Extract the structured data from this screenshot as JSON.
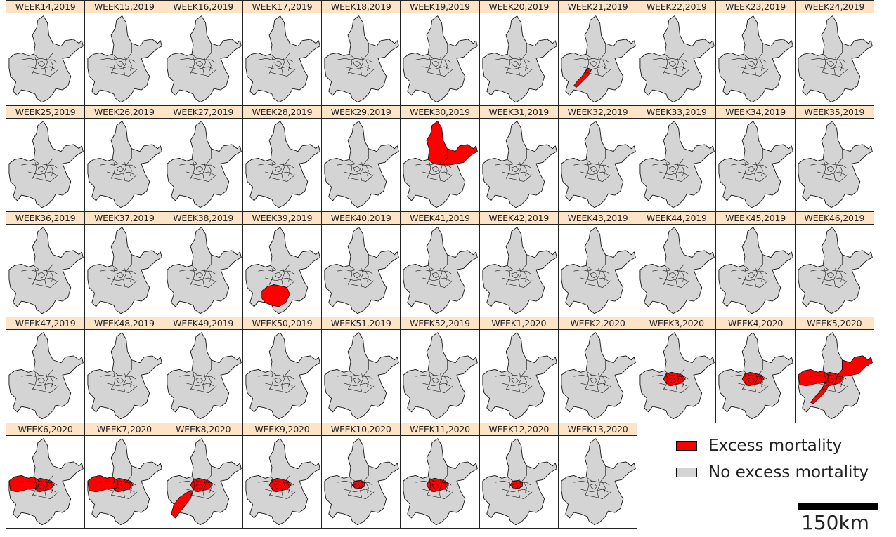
{
  "colors": {
    "excess": "#ff0000",
    "none": "#d4d4d4",
    "title_bg": "#fde4c6",
    "border": "#222222"
  },
  "panels": [
    {
      "label": "WEEK14,2019",
      "excess": []
    },
    {
      "label": "WEEK15,2019",
      "excess": []
    },
    {
      "label": "WEEK16,2019",
      "excess": []
    },
    {
      "label": "WEEK17,2019",
      "excess": []
    },
    {
      "label": "WEEK18,2019",
      "excess": []
    },
    {
      "label": "WEEK19,2019",
      "excess": []
    },
    {
      "label": "WEEK20,2019",
      "excess": []
    },
    {
      "label": "WEEK21,2019",
      "excess": [
        "sw-corridor"
      ]
    },
    {
      "label": "WEEK22,2019",
      "excess": []
    },
    {
      "label": "WEEK23,2019",
      "excess": []
    },
    {
      "label": "WEEK24,2019",
      "excess": []
    },
    {
      "label": "WEEK25,2019",
      "excess": []
    },
    {
      "label": "WEEK26,2019",
      "excess": []
    },
    {
      "label": "WEEK27,2019",
      "excess": []
    },
    {
      "label": "WEEK28,2019",
      "excess": []
    },
    {
      "label": "WEEK29,2019",
      "excess": []
    },
    {
      "label": "WEEK30,2019",
      "excess": [
        "north",
        "northeast"
      ]
    },
    {
      "label": "WEEK31,2019",
      "excess": []
    },
    {
      "label": "WEEK32,2019",
      "excess": []
    },
    {
      "label": "WEEK33,2019",
      "excess": []
    },
    {
      "label": "WEEK34,2019",
      "excess": []
    },
    {
      "label": "WEEK35,2019",
      "excess": []
    },
    {
      "label": "WEEK36,2019",
      "excess": []
    },
    {
      "label": "WEEK37,2019",
      "excess": []
    },
    {
      "label": "WEEK38,2019",
      "excess": []
    },
    {
      "label": "WEEK39,2019",
      "excess": [
        "south"
      ]
    },
    {
      "label": "WEEK40,2019",
      "excess": []
    },
    {
      "label": "WEEK41,2019",
      "excess": []
    },
    {
      "label": "WEEK42,2019",
      "excess": []
    },
    {
      "label": "WEEK43,2019",
      "excess": []
    },
    {
      "label": "WEEK44,2019",
      "excess": []
    },
    {
      "label": "WEEK45,2019",
      "excess": []
    },
    {
      "label": "WEEK46,2019",
      "excess": []
    },
    {
      "label": "WEEK47,2019",
      "excess": []
    },
    {
      "label": "WEEK48,2019",
      "excess": []
    },
    {
      "label": "WEEK49,2019",
      "excess": []
    },
    {
      "label": "WEEK50,2019",
      "excess": []
    },
    {
      "label": "WEEK51,2019",
      "excess": []
    },
    {
      "label": "WEEK52,2019",
      "excess": []
    },
    {
      "label": "WEEK1,2020",
      "excess": []
    },
    {
      "label": "WEEK2,2020",
      "excess": []
    },
    {
      "label": "WEEK3,2020",
      "excess": [
        "central"
      ]
    },
    {
      "label": "WEEK4,2020",
      "excess": [
        "central"
      ]
    },
    {
      "label": "WEEK5,2020",
      "excess": [
        "central",
        "northeast",
        "west",
        "sw-corridor"
      ]
    },
    {
      "label": "WEEK6,2020",
      "excess": [
        "central",
        "west"
      ]
    },
    {
      "label": "WEEK7,2020",
      "excess": [
        "central",
        "west"
      ]
    },
    {
      "label": "WEEK8,2020",
      "excess": [
        "central",
        "southwest"
      ]
    },
    {
      "label": "WEEK9,2020",
      "excess": [
        "central"
      ]
    },
    {
      "label": "WEEK10,2020",
      "excess": [
        "central-small"
      ]
    },
    {
      "label": "WEEK11,2020",
      "excess": [
        "central"
      ]
    },
    {
      "label": "WEEK12,2020",
      "excess": [
        "central-small"
      ]
    },
    {
      "label": "WEEK13,2020",
      "excess": []
    }
  ],
  "legend": [
    {
      "label": "Excess mortality",
      "color": "#ff0000"
    },
    {
      "label": "No excess mortality",
      "color": "#d4d4d4"
    }
  ],
  "scalebar": {
    "label": "150km"
  }
}
